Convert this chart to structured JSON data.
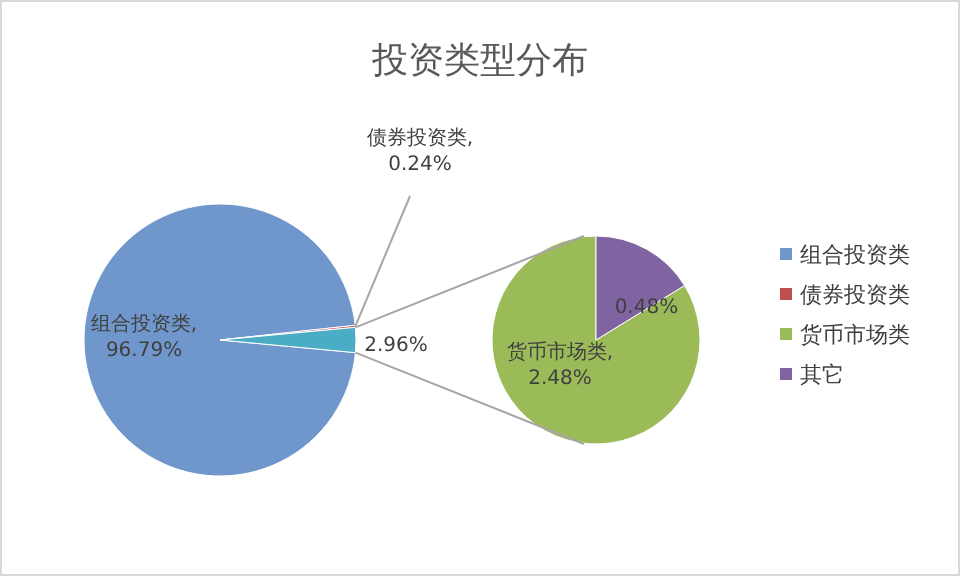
{
  "chart_data": [
    {
      "type": "pie",
      "title": "投资类型分布",
      "categories": [
        "组合投资类",
        "债券投资类",
        null
      ],
      "values": [
        96.79,
        0.24,
        2.96
      ],
      "colors": [
        "#6f97cc",
        "#c0504d",
        "#4bacc6"
      ],
      "value_labels": [
        "组合投资类, 96.79%",
        "债券投资类, 0.24%",
        "2.96%"
      ],
      "legend": "right"
    },
    {
      "type": "pie",
      "categories": [
        "货币市场类",
        "其它"
      ],
      "values": [
        2.48,
        0.48
      ],
      "colors": [
        "#9bbb59",
        "#8064a2"
      ],
      "value_labels": [
        "货币市场类, 2.48%",
        "0.48%"
      ],
      "legend": "right"
    }
  ]
}
